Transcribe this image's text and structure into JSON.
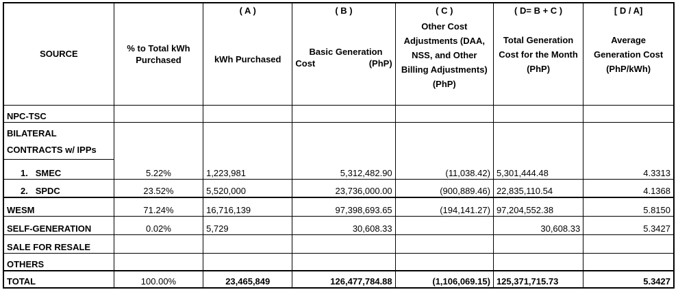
{
  "headers": {
    "source": "SOURCE",
    "pct": "% to Total kWh Purchased",
    "kwh_letter": "( A )",
    "kwh": "kWh Purchased",
    "basic_letter": "( B )",
    "basic_line1": "Basic Generation",
    "basic_line2a": "Cost",
    "basic_line2b": "(PhP)",
    "other_letter": "( C )",
    "other": "Other Cost Adjustments (DAA, NSS, and Other Billing Adjustments) (PhP)",
    "total_letter": "( D= B + C )",
    "total": "Total Generation Cost for the Month (PhP)",
    "avg_letter": "[ D / A]",
    "avg": "Average Generation Cost (PhP/kWh)"
  },
  "rows": {
    "npc": {
      "source": "NPC-TSC"
    },
    "bilateral": {
      "line1": "BILATERAL",
      "line2": "CONTRACTS w/ IPPs"
    },
    "smec": {
      "num": "1.",
      "source": "SMEC",
      "pct": "5.22%",
      "kwh": "1,223,981",
      "basic": "5,312,482.90",
      "other": "(11,038.42)",
      "total": "5,301,444.48",
      "avg": "4.3313"
    },
    "spdc": {
      "num": "2.",
      "source": "SPDC",
      "pct": "23.52%",
      "kwh": "5,520,000",
      "basic": "23,736,000.00",
      "other": "(900,889.46)",
      "total": "22,835,110.54",
      "avg": "4.1368"
    },
    "wesm": {
      "source": "WESM",
      "pct": "71.24%",
      "kwh": "16,716,139",
      "basic": "97,398,693.65",
      "other": "(194,141.27)",
      "total": "97,204,552.38",
      "avg": "5.8150"
    },
    "selfgen": {
      "source": "SELF-GENERATION",
      "pct": "0.02%",
      "kwh": "5,729",
      "basic": "30,608.33",
      "other": "",
      "total": "30,608.33",
      "avg": "5.3427"
    },
    "resale": {
      "source": "SALE FOR RESALE"
    },
    "others": {
      "source": "OTHERS"
    },
    "total": {
      "source": "TOTAL",
      "pct": "100.00%",
      "kwh": "23,465,849",
      "basic": "126,477,784.88",
      "other": "(1,106,069.15)",
      "total": "125,371,715.73",
      "avg": "5.3427"
    }
  }
}
